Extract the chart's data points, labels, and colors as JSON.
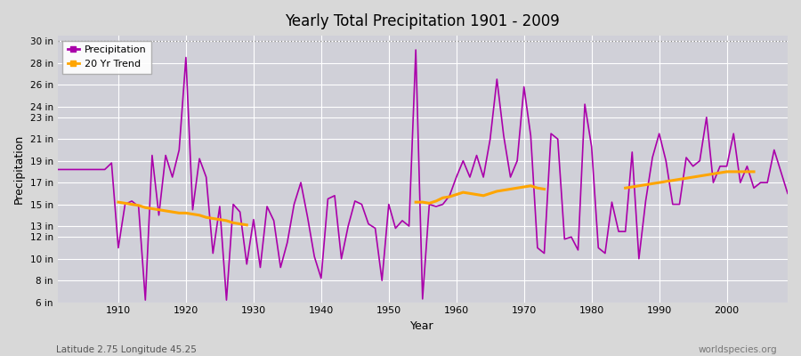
{
  "title": "Yearly Total Precipitation 1901 - 2009",
  "xlabel": "Year",
  "ylabel": "Precipitation",
  "subtitle_lat_lon": "Latitude 2.75 Longitude 45.25",
  "credit": "worldspecies.org",
  "ylim": [
    6,
    30.5
  ],
  "yticks": [
    6,
    8,
    10,
    12,
    13,
    15,
    17,
    19,
    21,
    23,
    24,
    26,
    28,
    30
  ],
  "ytick_labels": [
    "6 in",
    "8 in",
    "10 in",
    "12 in",
    "13 in",
    "15 in",
    "17 in",
    "19 in",
    "21 in",
    "23 in",
    "24 in",
    "26 in",
    "28 in",
    "30 in"
  ],
  "xlim": [
    1901,
    2009
  ],
  "precip_color": "#aa00aa",
  "trend_color": "#FFA500",
  "bg_color": "#d8d8d8",
  "plot_bg_color": "#d0d0d8",
  "grid_color": "#ffffff",
  "years": [
    1901,
    1902,
    1903,
    1904,
    1905,
    1906,
    1907,
    1908,
    1909,
    1910,
    1911,
    1912,
    1913,
    1914,
    1915,
    1916,
    1917,
    1918,
    1919,
    1920,
    1921,
    1922,
    1923,
    1924,
    1925,
    1926,
    1927,
    1928,
    1929,
    1930,
    1931,
    1932,
    1933,
    1934,
    1935,
    1936,
    1937,
    1938,
    1939,
    1940,
    1941,
    1942,
    1943,
    1944,
    1945,
    1946,
    1947,
    1948,
    1949,
    1950,
    1951,
    1952,
    1953,
    1954,
    1955,
    1956,
    1957,
    1958,
    1959,
    1960,
    1961,
    1962,
    1963,
    1964,
    1965,
    1966,
    1967,
    1968,
    1969,
    1970,
    1971,
    1972,
    1973,
    1974,
    1975,
    1976,
    1977,
    1978,
    1979,
    1980,
    1981,
    1982,
    1983,
    1984,
    1985,
    1986,
    1987,
    1988,
    1989,
    1990,
    1991,
    1992,
    1993,
    1994,
    1995,
    1996,
    1997,
    1998,
    1999,
    2000,
    2001,
    2002,
    2003,
    2004,
    2005,
    2006,
    2007,
    2008,
    2009
  ],
  "precip": [
    18.2,
    18.2,
    18.2,
    18.2,
    18.2,
    18.2,
    18.2,
    18.2,
    18.8,
    11.0,
    15.0,
    15.3,
    14.8,
    6.2,
    19.5,
    14.0,
    19.5,
    17.5,
    20.0,
    28.5,
    14.5,
    19.2,
    17.5,
    10.5,
    14.8,
    6.2,
    15.0,
    14.3,
    9.5,
    13.6,
    9.2,
    14.8,
    13.5,
    9.2,
    11.5,
    15.0,
    17.0,
    13.8,
    10.2,
    8.2,
    15.5,
    15.8,
    10.0,
    13.0,
    15.3,
    15.0,
    13.2,
    12.8,
    8.0,
    15.0,
    12.8,
    13.5,
    13.0,
    29.2,
    6.3,
    15.0,
    14.8,
    15.0,
    15.8,
    17.5,
    19.0,
    17.5,
    19.5,
    17.5,
    21.0,
    26.5,
    21.3,
    17.5,
    19.0,
    25.8,
    21.3,
    11.0,
    10.5,
    21.5,
    21.0,
    11.8,
    12.0,
    10.8,
    24.2,
    20.3,
    11.0,
    10.5,
    15.2,
    12.5,
    12.5,
    19.8,
    10.0,
    15.3,
    19.3,
    21.5,
    19.0,
    15.0,
    15.0,
    19.3,
    18.5,
    19.0,
    23.0,
    17.0,
    18.5,
    18.5,
    21.5,
    17.0,
    18.5,
    16.5,
    17.0,
    17.0,
    20.0,
    18.0,
    16.0
  ],
  "trend_seg1_years": [
    1910,
    1911,
    1912,
    1913,
    1914,
    1915,
    1916,
    1917,
    1918,
    1919,
    1920,
    1921,
    1922,
    1923,
    1924,
    1925,
    1926,
    1927,
    1928,
    1929
  ],
  "trend_seg1": [
    15.2,
    15.1,
    15.0,
    14.9,
    14.7,
    14.6,
    14.5,
    14.4,
    14.3,
    14.2,
    14.2,
    14.1,
    14.0,
    13.8,
    13.7,
    13.6,
    13.5,
    13.3,
    13.2,
    13.1
  ],
  "trend_seg2_years": [
    1954,
    1955,
    1956,
    1957,
    1958,
    1959,
    1960,
    1961,
    1962,
    1963,
    1964,
    1965,
    1966,
    1967,
    1968,
    1969,
    1970,
    1971,
    1972,
    1973
  ],
  "trend_seg2": [
    15.2,
    15.2,
    15.1,
    15.3,
    15.6,
    15.7,
    15.9,
    16.1,
    16.0,
    15.9,
    15.8,
    16.0,
    16.2,
    16.3,
    16.4,
    16.5,
    16.6,
    16.7,
    16.5,
    16.4
  ],
  "trend_seg3_years": [
    1985,
    1986,
    1987,
    1988,
    1989,
    1990,
    1991,
    1992,
    1993,
    1994,
    1995,
    1996,
    1997,
    1998,
    1999,
    2000,
    2001,
    2002,
    2003,
    2004
  ],
  "trend_seg3": [
    16.5,
    16.6,
    16.7,
    16.8,
    16.9,
    17.0,
    17.1,
    17.2,
    17.3,
    17.4,
    17.5,
    17.6,
    17.7,
    17.8,
    17.9,
    18.0,
    18.0,
    18.0,
    18.0,
    18.0
  ]
}
